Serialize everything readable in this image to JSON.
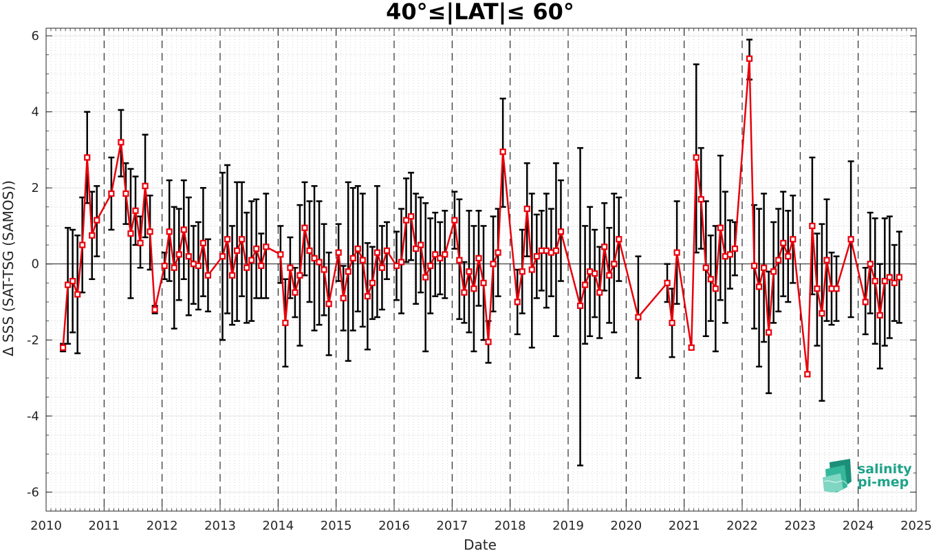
{
  "chart_data": {
    "type": "line",
    "title": "40°≤|LAT|≤ 60°",
    "xlabel": "Date",
    "ylabel": "Δ SSS (SAT-TSG (SAMOS))",
    "xlim": [
      2010,
      2025
    ],
    "ylim": [
      -6.5,
      6.2
    ],
    "x_ticks": [
      "2010",
      "2011",
      "2012",
      "2013",
      "2014",
      "2015",
      "2016",
      "2017",
      "2018",
      "2019",
      "2020",
      "2021",
      "2022",
      "2023",
      "2024",
      "2025"
    ],
    "y_ticks": [
      "-6",
      "-4",
      "-2",
      "0",
      "2",
      "4",
      "6"
    ],
    "grid": true,
    "year_dividers": "dashed vertical lines at each year",
    "series": [
      {
        "color": "#e8000b",
        "marker": "square",
        "points": [
          {
            "x": "2010-04",
            "y": -2.2,
            "lo": -2.3,
            "hi": -2.1
          },
          {
            "x": "2010-05",
            "y": -0.55,
            "lo": -2.1,
            "hi": 0.95
          },
          {
            "x": "2010-06",
            "y": -0.45,
            "lo": -1.8,
            "hi": 0.9
          },
          {
            "x": "2010-07",
            "y": -0.8,
            "lo": -2.35,
            "hi": 0.75
          },
          {
            "x": "2010-08",
            "y": 0.5,
            "lo": -0.75,
            "hi": 1.75
          },
          {
            "x": "2010-09",
            "y": 2.8,
            "lo": 1.6,
            "hi": 4.0
          },
          {
            "x": "2010-10",
            "y": 0.75,
            "lo": -0.4,
            "hi": 1.9
          },
          {
            "x": "2010-11",
            "y": 1.15,
            "lo": 0.2,
            "hi": 2.05
          },
          {
            "x": "2011-02",
            "y": 1.85,
            "lo": 0.9,
            "hi": 2.8
          },
          {
            "x": "2011-04",
            "y": 3.2,
            "lo": 2.3,
            "hi": 4.05
          },
          {
            "x": "2011-05",
            "y": 1.85,
            "lo": 1.05,
            "hi": 2.65
          },
          {
            "x": "2011-06",
            "y": 0.8,
            "lo": -0.9,
            "hi": 2.5
          },
          {
            "x": "2011-07",
            "y": 1.4,
            "lo": 0.5,
            "hi": 2.3
          },
          {
            "x": "2011-08",
            "y": 0.55,
            "lo": -0.1,
            "hi": 1.25
          },
          {
            "x": "2011-09",
            "y": 2.05,
            "lo": 0.7,
            "hi": 3.4
          },
          {
            "x": "2011-10",
            "y": 0.85,
            "lo": -0.15,
            "hi": 1.8
          },
          {
            "x": "2011-11",
            "y": -1.2,
            "lo": -1.3,
            "hi": -1.1
          },
          {
            "x": "2012-01",
            "y": -0.05,
            "lo": -0.4,
            "hi": 0.3
          },
          {
            "x": "2012-02",
            "y": 0.85,
            "lo": -0.45,
            "hi": 2.2
          },
          {
            "x": "2012-03",
            "y": -0.1,
            "lo": -1.7,
            "hi": 1.5
          },
          {
            "x": "2012-04",
            "y": 0.25,
            "lo": -0.95,
            "hi": 1.45
          },
          {
            "x": "2012-05",
            "y": 0.9,
            "lo": -0.4,
            "hi": 2.2
          },
          {
            "x": "2012-06",
            "y": 0.2,
            "lo": -1.35,
            "hi": 1.75
          },
          {
            "x": "2012-07",
            "y": 0.0,
            "lo": -1.05,
            "hi": 1.0
          },
          {
            "x": "2012-08",
            "y": -0.05,
            "lo": -1.2,
            "hi": 1.1
          },
          {
            "x": "2012-09",
            "y": 0.55,
            "lo": -0.85,
            "hi": 2.0
          },
          {
            "x": "2012-10",
            "y": -0.3,
            "lo": -1.25,
            "hi": 0.65
          },
          {
            "x": "2013-01",
            "y": 0.2,
            "lo": -2.0,
            "hi": 2.4
          },
          {
            "x": "2013-02",
            "y": 0.65,
            "lo": -1.3,
            "hi": 2.6
          },
          {
            "x": "2013-03",
            "y": -0.3,
            "lo": -1.6,
            "hi": 1.0
          },
          {
            "x": "2013-04",
            "y": 0.35,
            "lo": -1.5,
            "hi": 2.15
          },
          {
            "x": "2013-05",
            "y": 0.65,
            "lo": -0.85,
            "hi": 2.15
          },
          {
            "x": "2013-06",
            "y": -0.1,
            "lo": -1.55,
            "hi": 1.35
          },
          {
            "x": "2013-07",
            "y": 0.1,
            "lo": -1.5,
            "hi": 1.65
          },
          {
            "x": "2013-08",
            "y": 0.4,
            "lo": -0.9,
            "hi": 1.7
          },
          {
            "x": "2013-09",
            "y": -0.05,
            "lo": -0.9,
            "hi": 0.8
          },
          {
            "x": "2013-10",
            "y": 0.45,
            "lo": -0.9,
            "hi": 1.85
          },
          {
            "x": "2014-01",
            "y": 0.25,
            "lo": -0.5,
            "hi": 1.0
          },
          {
            "x": "2014-02",
            "y": -1.55,
            "lo": -2.7,
            "hi": -0.4
          },
          {
            "x": "2014-03",
            "y": -0.1,
            "lo": -0.9,
            "hi": 0.7
          },
          {
            "x": "2014-04",
            "y": -0.75,
            "lo": -1.4,
            "hi": -0.1
          },
          {
            "x": "2014-05",
            "y": -0.3,
            "lo": -2.15,
            "hi": 1.55
          },
          {
            "x": "2014-06",
            "y": 0.95,
            "lo": -0.3,
            "hi": 2.15
          },
          {
            "x": "2014-07",
            "y": 0.35,
            "lo": -1.0,
            "hi": 1.65
          },
          {
            "x": "2014-08",
            "y": 0.15,
            "lo": -1.75,
            "hi": 2.05
          },
          {
            "x": "2014-09",
            "y": 0.05,
            "lo": -1.6,
            "hi": 1.65
          },
          {
            "x": "2014-10",
            "y": -0.15,
            "lo": -1.35,
            "hi": 1.05
          },
          {
            "x": "2014-11",
            "y": -1.05,
            "lo": -2.4,
            "hi": 0.3
          },
          {
            "x": "2015-01",
            "y": 0.3,
            "lo": -0.45,
            "hi": 1.05
          },
          {
            "x": "2015-02",
            "y": -0.9,
            "lo": -1.75,
            "hi": -0.05
          },
          {
            "x": "2015-03",
            "y": -0.2,
            "lo": -2.55,
            "hi": 2.15
          },
          {
            "x": "2015-04",
            "y": 0.15,
            "lo": -1.75,
            "hi": 2.0
          },
          {
            "x": "2015-05",
            "y": 0.4,
            "lo": -1.25,
            "hi": 2.05
          },
          {
            "x": "2015-06",
            "y": 0.1,
            "lo": -1.65,
            "hi": 1.85
          },
          {
            "x": "2015-07",
            "y": -0.85,
            "lo": -2.25,
            "hi": 0.55
          },
          {
            "x": "2015-08",
            "y": -0.5,
            "lo": -1.45,
            "hi": 0.45
          },
          {
            "x": "2015-09",
            "y": 0.3,
            "lo": -1.4,
            "hi": 2.05
          },
          {
            "x": "2015-10",
            "y": -0.1,
            "lo": -1.2,
            "hi": 1.0
          },
          {
            "x": "2015-11",
            "y": 0.35,
            "lo": -0.4,
            "hi": 1.1
          },
          {
            "x": "2016-01",
            "y": -0.05,
            "lo": -0.95,
            "hi": 0.85
          },
          {
            "x": "2016-02",
            "y": 0.05,
            "lo": -1.3,
            "hi": 1.45
          },
          {
            "x": "2016-03",
            "y": 1.15,
            "lo": 0.05,
            "hi": 2.25
          },
          {
            "x": "2016-04",
            "y": 1.25,
            "lo": 0.1,
            "hi": 2.4
          },
          {
            "x": "2016-05",
            "y": 0.4,
            "lo": -1.05,
            "hi": 1.85
          },
          {
            "x": "2016-06",
            "y": 0.5,
            "lo": -0.75,
            "hi": 1.75
          },
          {
            "x": "2016-07",
            "y": -0.35,
            "lo": -2.3,
            "hi": 1.6
          },
          {
            "x": "2016-08",
            "y": -0.05,
            "lo": -1.3,
            "hi": 1.2
          },
          {
            "x": "2016-09",
            "y": 0.25,
            "lo": -0.85,
            "hi": 1.35
          },
          {
            "x": "2016-10",
            "y": 0.15,
            "lo": -0.8,
            "hi": 1.1
          },
          {
            "x": "2016-11",
            "y": 0.25,
            "lo": -0.9,
            "hi": 1.4
          },
          {
            "x": "2017-01",
            "y": 1.15,
            "lo": 0.4,
            "hi": 1.9
          },
          {
            "x": "2017-02",
            "y": 0.1,
            "lo": -1.45,
            "hi": 1.7
          },
          {
            "x": "2017-03",
            "y": -0.75,
            "lo": -1.55,
            "hi": 0.05
          },
          {
            "x": "2017-04",
            "y": -0.2,
            "lo": -1.8,
            "hi": 1.4
          },
          {
            "x": "2017-05",
            "y": -0.65,
            "lo": -2.3,
            "hi": 1.0
          },
          {
            "x": "2017-06",
            "y": 0.15,
            "lo": -1.1,
            "hi": 1.4
          },
          {
            "x": "2017-07",
            "y": -0.5,
            "lo": -2.0,
            "hi": 1.0
          },
          {
            "x": "2017-08",
            "y": -2.05,
            "lo": -2.6,
            "hi": -1.5
          },
          {
            "x": "2017-09",
            "y": 0.0,
            "lo": -1.25,
            "hi": 1.25
          },
          {
            "x": "2017-10",
            "y": 0.3,
            "lo": -0.85,
            "hi": 1.45
          },
          {
            "x": "2017-11",
            "y": 2.95,
            "lo": 1.5,
            "hi": 4.35
          },
          {
            "x": "2018-02",
            "y": -1.0,
            "lo": -1.85,
            "hi": -0.15
          },
          {
            "x": "2018-03",
            "y": -0.2,
            "lo": -1.3,
            "hi": 0.9
          },
          {
            "x": "2018-04",
            "y": 1.45,
            "lo": 0.2,
            "hi": 2.65
          },
          {
            "x": "2018-05",
            "y": -0.15,
            "lo": -2.2,
            "hi": 1.85
          },
          {
            "x": "2018-06",
            "y": 0.2,
            "lo": -0.9,
            "hi": 1.3
          },
          {
            "x": "2018-07",
            "y": 0.35,
            "lo": -0.7,
            "hi": 1.4
          },
          {
            "x": "2018-08",
            "y": 0.35,
            "lo": -1.15,
            "hi": 1.85
          },
          {
            "x": "2018-09",
            "y": 0.3,
            "lo": -0.85,
            "hi": 1.45
          },
          {
            "x": "2018-10",
            "y": 0.35,
            "lo": -1.9,
            "hi": 2.65
          },
          {
            "x": "2018-11",
            "y": 0.85,
            "lo": -0.45,
            "hi": 2.2
          },
          {
            "x": "2019-03",
            "y": -1.1,
            "lo": -5.3,
            "hi": 3.05
          },
          {
            "x": "2019-04",
            "y": -0.55,
            "lo": -2.1,
            "hi": 1.0
          },
          {
            "x": "2019-05",
            "y": -0.2,
            "lo": -1.9,
            "hi": 1.5
          },
          {
            "x": "2019-06",
            "y": -0.25,
            "lo": -1.4,
            "hi": 0.9
          },
          {
            "x": "2019-07",
            "y": -0.75,
            "lo": -1.95,
            "hi": 0.45
          },
          {
            "x": "2019-08",
            "y": 0.45,
            "lo": -0.7,
            "hi": 1.6
          },
          {
            "x": "2019-09",
            "y": -0.3,
            "lo": -1.55,
            "hi": 0.95
          },
          {
            "x": "2019-10",
            "y": 0.0,
            "lo": -1.8,
            "hi": 1.85
          },
          {
            "x": "2019-11",
            "y": 0.65,
            "lo": -0.45,
            "hi": 1.75
          },
          {
            "x": "2020-03",
            "y": -1.4,
            "lo": -3.0,
            "hi": 0.2
          },
          {
            "x": "2020-09",
            "y": -0.5,
            "lo": -1.0,
            "hi": 0.0
          },
          {
            "x": "2020-10",
            "y": -1.55,
            "lo": -2.45,
            "hi": -0.65
          },
          {
            "x": "2020-11",
            "y": 0.3,
            "lo": -1.05,
            "hi": 1.65
          },
          {
            "x": "2021-02",
            "y": -2.2,
            "lo": -2.25,
            "hi": -2.15
          },
          {
            "x": "2021-03",
            "y": 2.8,
            "lo": 0.3,
            "hi": 5.25
          },
          {
            "x": "2021-04",
            "y": 1.7,
            "lo": 0.4,
            "hi": 3.05
          },
          {
            "x": "2021-05",
            "y": -0.1,
            "lo": -1.9,
            "hi": 1.65
          },
          {
            "x": "2021-06",
            "y": -0.4,
            "lo": -1.5,
            "hi": 0.75
          },
          {
            "x": "2021-07",
            "y": -0.65,
            "lo": -2.3,
            "hi": 1.0
          },
          {
            "x": "2021-08",
            "y": 0.95,
            "lo": -0.95,
            "hi": 2.85
          },
          {
            "x": "2021-09",
            "y": 0.2,
            "lo": -1.55,
            "hi": 1.9
          },
          {
            "x": "2021-10",
            "y": 0.25,
            "lo": -0.65,
            "hi": 1.15
          },
          {
            "x": "2021-11",
            "y": 0.4,
            "lo": -0.3,
            "hi": 1.1
          },
          {
            "x": "2022-02",
            "y": 5.4,
            "lo": 4.85,
            "hi": 5.9
          },
          {
            "x": "2022-03",
            "y": -0.05,
            "lo": -1.7,
            "hi": 1.55
          },
          {
            "x": "2022-04",
            "y": -0.6,
            "lo": -2.7,
            "hi": 1.45
          },
          {
            "x": "2022-05",
            "y": -0.1,
            "lo": -2.05,
            "hi": 1.85
          },
          {
            "x": "2022-06",
            "y": -1.8,
            "lo": -3.4,
            "hi": -0.2
          },
          {
            "x": "2022-07",
            "y": -0.2,
            "lo": -1.55,
            "hi": 1.1
          },
          {
            "x": "2022-08",
            "y": 0.1,
            "lo": -1.25,
            "hi": 1.45
          },
          {
            "x": "2022-09",
            "y": 0.55,
            "lo": -0.85,
            "hi": 1.9
          },
          {
            "x": "2022-10",
            "y": 0.2,
            "lo": -1.0,
            "hi": 1.4
          },
          {
            "x": "2022-11",
            "y": 0.65,
            "lo": -0.5,
            "hi": 1.8
          },
          {
            "x": "2023-02",
            "y": -2.9,
            "lo": -2.95,
            "hi": -2.85
          },
          {
            "x": "2023-03",
            "y": 1.0,
            "lo": -0.8,
            "hi": 2.8
          },
          {
            "x": "2023-04",
            "y": -0.65,
            "lo": -2.15,
            "hi": 0.8
          },
          {
            "x": "2023-05",
            "y": -1.3,
            "lo": -3.6,
            "hi": 1.05
          },
          {
            "x": "2023-06",
            "y": 0.1,
            "lo": -1.5,
            "hi": 1.7
          },
          {
            "x": "2023-07",
            "y": -0.65,
            "lo": -1.6,
            "hi": 0.3
          },
          {
            "x": "2023-08",
            "y": -0.65,
            "lo": -1.5,
            "hi": 0.2
          },
          {
            "x": "2023-11",
            "y": 0.65,
            "lo": -1.4,
            "hi": 2.7
          },
          {
            "x": "2024-02",
            "y": -1.0,
            "lo": -1.85,
            "hi": -0.1
          },
          {
            "x": "2024-03",
            "y": 0.0,
            "lo": -1.3,
            "hi": 1.35
          },
          {
            "x": "2024-04",
            "y": -0.45,
            "lo": -2.1,
            "hi": 1.2
          },
          {
            "x": "2024-05",
            "y": -1.35,
            "lo": -2.75,
            "hi": 0.0
          },
          {
            "x": "2024-06",
            "y": -0.45,
            "lo": -2.15,
            "hi": 1.2
          },
          {
            "x": "2024-07",
            "y": -0.35,
            "lo": -1.95,
            "hi": 1.25
          },
          {
            "x": "2024-08",
            "y": -0.5,
            "lo": -1.5,
            "hi": 0.5
          },
          {
            "x": "2024-09",
            "y": -0.35,
            "lo": -1.55,
            "hi": 0.85
          }
        ]
      }
    ]
  },
  "logo": {
    "line1": "salinity",
    "line2": "pi-mep"
  },
  "colors": {
    "series": "#e8000b",
    "errorbar": "#000000",
    "logo_text": "#1fa38a",
    "logo_mark": "#35b79c"
  }
}
